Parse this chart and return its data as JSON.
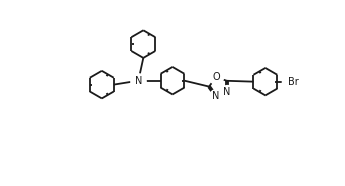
{
  "bg": "#ffffff",
  "lc": "#1a1a1a",
  "lw": 1.3,
  "r_hex": 0.28,
  "r_ox": 0.2,
  "figw": 3.45,
  "figh": 1.86,
  "dpi": 100,
  "xlim": [
    0.0,
    7.0
  ],
  "ylim": [
    0.5,
    4.2
  ],
  "N_fontsize": 7.0,
  "O_fontsize": 7.0,
  "Br_fontsize": 7.0
}
